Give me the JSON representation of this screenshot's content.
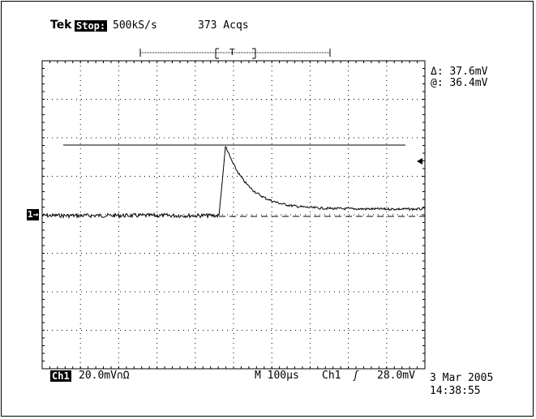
{
  "header": {
    "brand": "Tek",
    "run_state": "Stop:",
    "sample_rate": "500kS/s",
    "acquisitions": "373 Acqs",
    "trigger_marker": "T"
  },
  "measurement": {
    "delta_label": "Δ: 37.6mV",
    "at_label": "@: 36.4mV"
  },
  "channel_marker": "1→",
  "footer": {
    "channel_label": "Ch1",
    "volts_per_div": "20.0mV∩Ω",
    "timebase": "M 100μs",
    "trigger_source": "Ch1",
    "trigger_slope": "ʃ",
    "trigger_level": "28.0mV",
    "date": "3 Mar 2005",
    "time": "14:38:55"
  },
  "colors": {
    "background": "#ffffff",
    "trace": "#000000",
    "graticule": "#000000"
  },
  "icons": [
    "trigger-level-arrow-icon",
    "channel-1-ground-marker-icon",
    "trigger-position-marker-icon"
  ]
}
